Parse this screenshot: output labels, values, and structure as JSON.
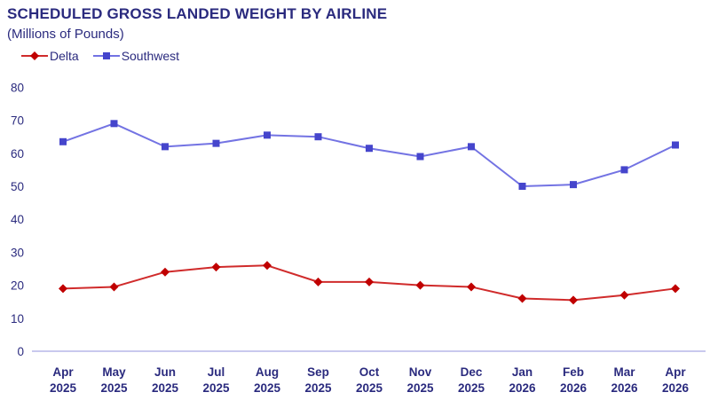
{
  "header": {
    "title": "SCHEDULED GROSS LANDED WEIGHT BY AIRLINE",
    "subtitle": "(Millions of Pounds)"
  },
  "colors": {
    "text_navy": "#2A2A7E",
    "axis_line": "#C9C9EE",
    "delta_line": "#D02B2B",
    "delta_marker": "#C00000",
    "southwest_line": "#7373E3",
    "southwest_marker": "#4545CC"
  },
  "chart_data": {
    "type": "line",
    "title": "SCHEDULED GROSS LANDED WEIGHT BY AIRLINE",
    "subtitle": "(Millions of Pounds)",
    "categories": [
      "Apr 2025",
      "May 2025",
      "Jun 2025",
      "Jul 2025",
      "Aug 2025",
      "Sep 2025",
      "Oct 2025",
      "Nov 2025",
      "Dec 2025",
      "Jan 2026",
      "Feb 2026",
      "Mar 2026",
      "Apr 2026"
    ],
    "series": [
      {
        "name": "Delta",
        "marker": "diamond",
        "line_color": "#D02B2B",
        "marker_color": "#C00000",
        "values": [
          19,
          19.5,
          24,
          25.5,
          26,
          21,
          21,
          20,
          19.5,
          16,
          15.5,
          17,
          19
        ]
      },
      {
        "name": "Southwest",
        "marker": "square",
        "line_color": "#7373E3",
        "marker_color": "#4545CC",
        "values": [
          63.5,
          69,
          62,
          63,
          65.5,
          65,
          61.5,
          59,
          62,
          50,
          50.5,
          55,
          62.5
        ]
      }
    ],
    "ylim": [
      0,
      80
    ],
    "yticks": [
      0,
      10,
      20,
      30,
      40,
      50,
      60,
      70,
      80
    ],
    "xlabel": "",
    "ylabel": "",
    "grid": false,
    "legend_position": "top-left"
  }
}
